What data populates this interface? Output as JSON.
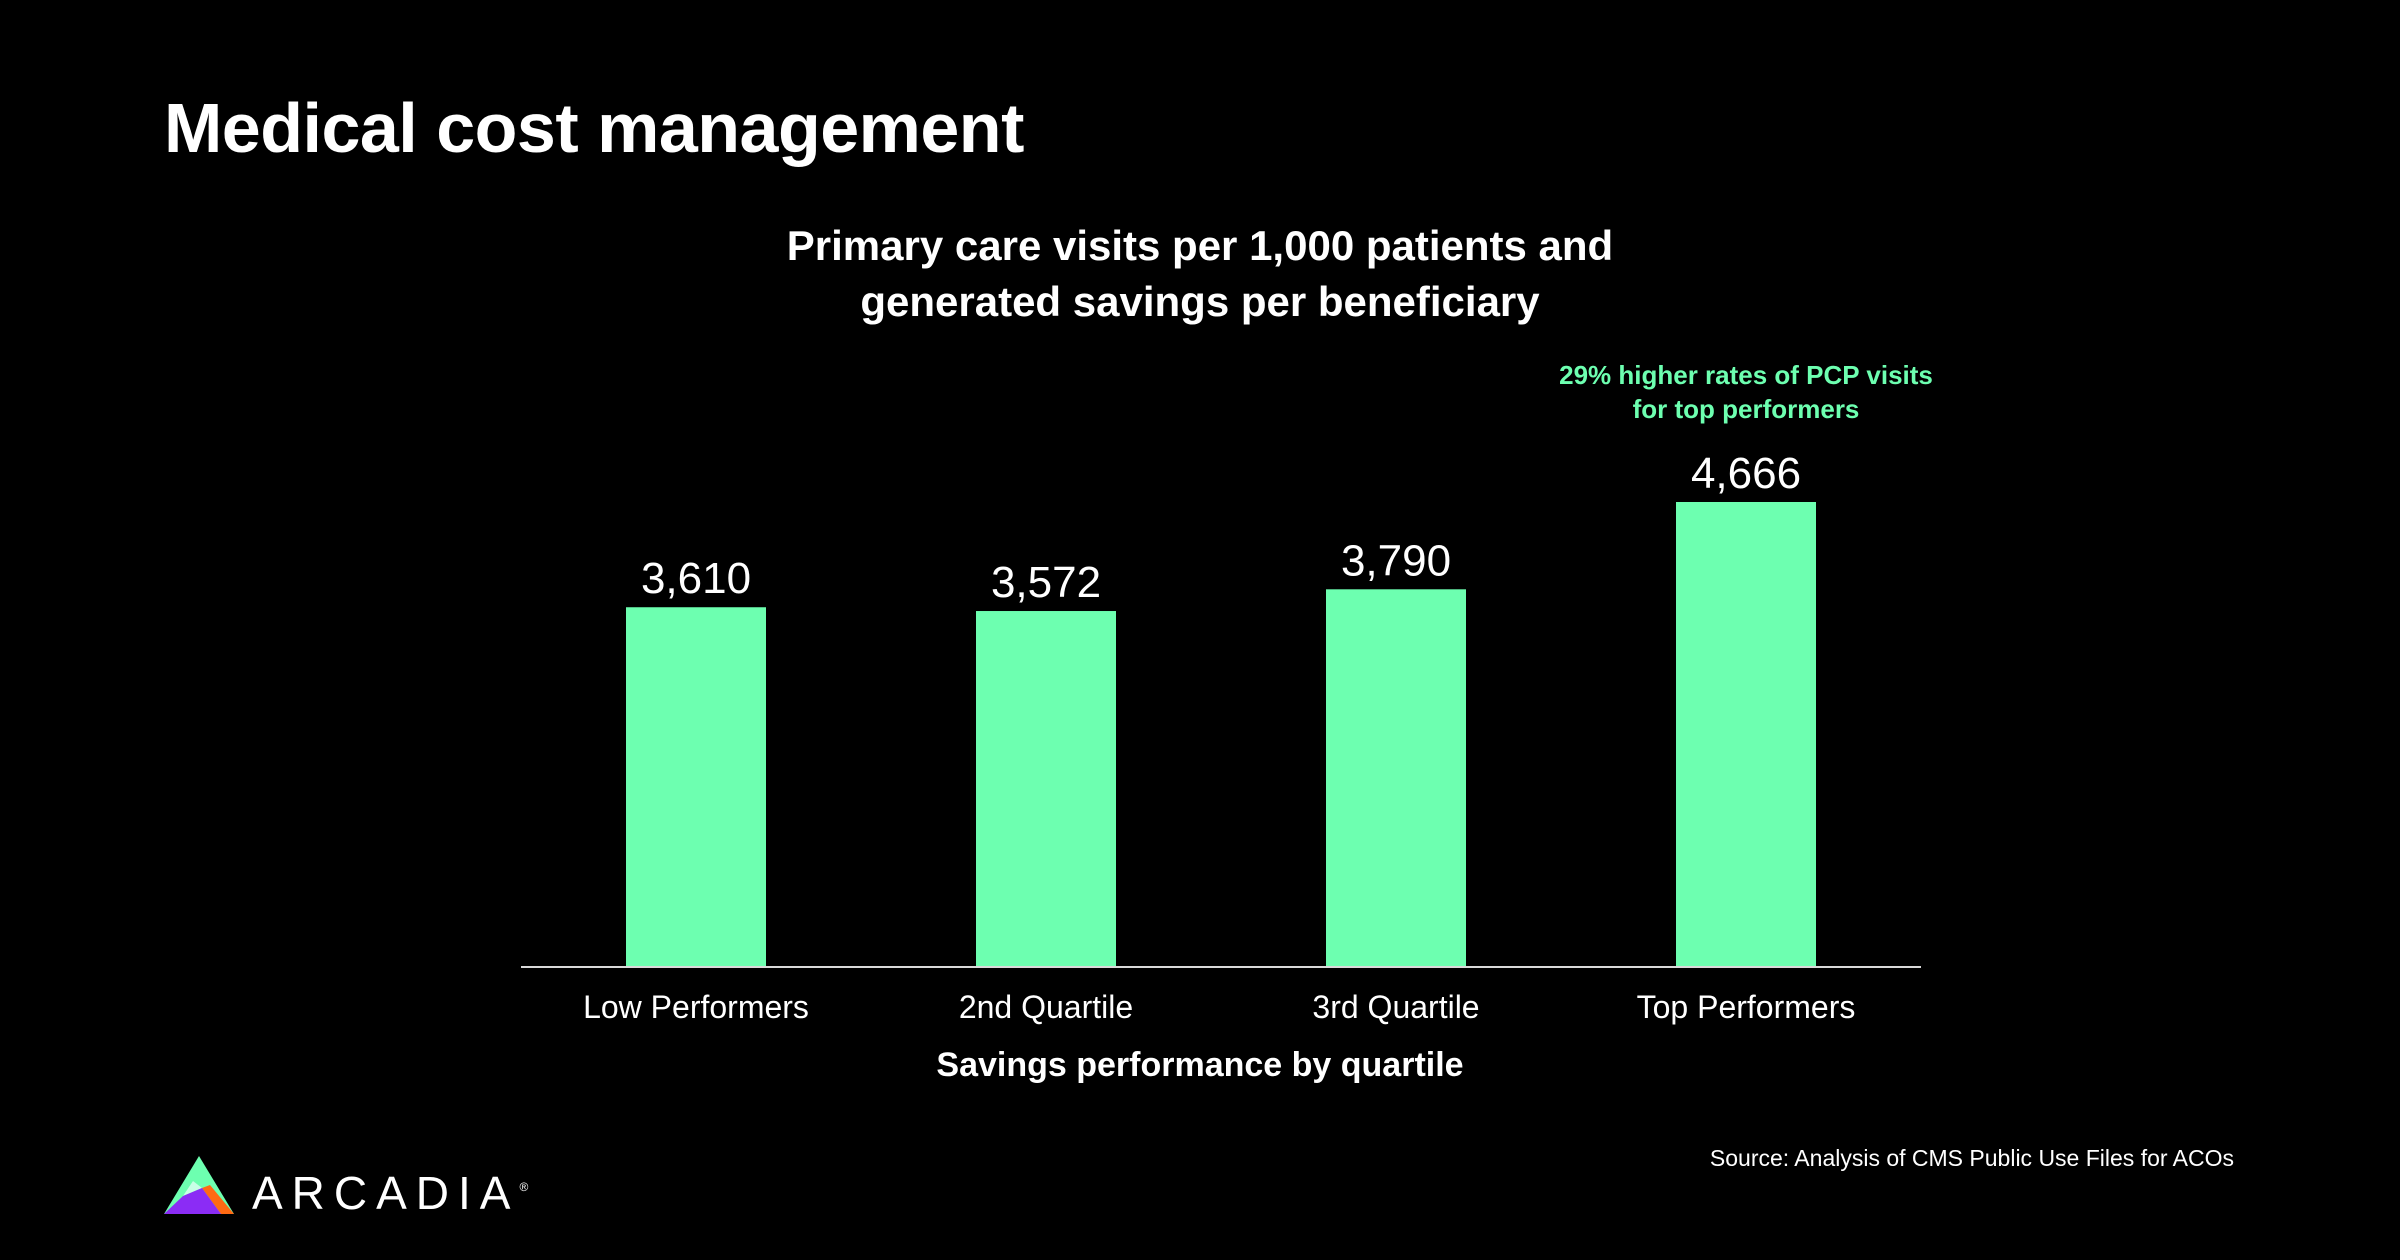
{
  "slide": {
    "title": "Medical cost management",
    "source": "Source: Analysis of CMS Public Use Files for ACOs"
  },
  "logo": {
    "icon": "arcadia-triangle-logo-icon",
    "word": "ARCADIA",
    "registered": "®"
  },
  "colors": {
    "background": "#000000",
    "bar": "#6dffb0",
    "text": "#ffffff",
    "annotation": "#6dffb0",
    "axis": "#d9d9d9"
  },
  "chart_data": {
    "type": "bar",
    "title_lines": [
      "Primary care visits per 1,000 patients and",
      "generated savings per beneficiary"
    ],
    "categories": [
      "Low Performers",
      "2nd Quartile",
      "3rd Quartile",
      "Top Performers"
    ],
    "values": [
      3610,
      3572,
      3790,
      4666
    ],
    "value_labels": [
      "3,610",
      "3,572",
      "3,790",
      "4,666"
    ],
    "xlabel": "Savings performance by quartile",
    "ylabel": "",
    "ylim": [
      0,
      4666
    ],
    "grid": false,
    "y_axis_visible": false,
    "annotation": {
      "category": "Top Performers",
      "lines": [
        "29% higher rates of PCP visits",
        "for top performers"
      ]
    }
  }
}
